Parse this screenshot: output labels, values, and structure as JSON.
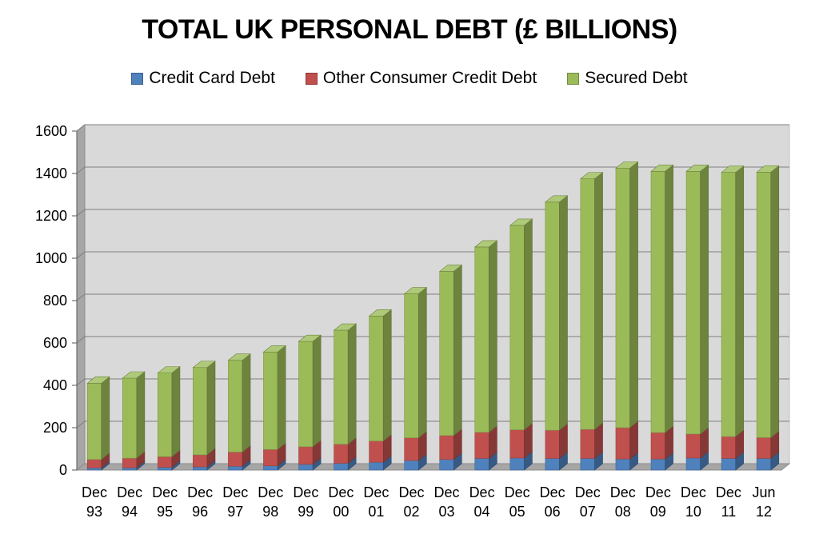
{
  "chart_data": {
    "type": "bar",
    "stacked": true,
    "title": "TOTAL UK PERSONAL DEBT (£ BILLIONS)",
    "xlabel": "",
    "ylabel": "",
    "ylim": [
      0,
      1600
    ],
    "yticks": [
      0,
      200,
      400,
      600,
      800,
      1000,
      1200,
      1400,
      1600
    ],
    "grid": true,
    "legend_position": "top",
    "categories": [
      [
        "Dec",
        "93"
      ],
      [
        "Dec",
        "94"
      ],
      [
        "Dec",
        "95"
      ],
      [
        "Dec",
        "96"
      ],
      [
        "Dec",
        "97"
      ],
      [
        "Dec",
        "98"
      ],
      [
        "Dec",
        "99"
      ],
      [
        "Dec",
        "00"
      ],
      [
        "Dec",
        "01"
      ],
      [
        "Dec",
        "02"
      ],
      [
        "Dec",
        "03"
      ],
      [
        "Dec",
        "04"
      ],
      [
        "Dec",
        "05"
      ],
      [
        "Dec",
        "06"
      ],
      [
        "Dec",
        "07"
      ],
      [
        "Dec",
        "08"
      ],
      [
        "Dec",
        "09"
      ],
      [
        "Dec",
        "10"
      ],
      [
        "Dec",
        "11"
      ],
      [
        "Jun",
        "12"
      ]
    ],
    "series": [
      {
        "name": "Credit Card Debt",
        "color": "#4f81bd",
        "values": [
          10,
          11,
          13,
          15,
          18,
          20,
          27,
          32,
          37,
          45,
          50,
          55,
          57,
          55,
          55,
          52,
          52,
          57,
          55,
          55
        ]
      },
      {
        "name": "Other Consumer Credit Debt",
        "color": "#c0504d",
        "values": [
          40,
          45,
          50,
          57,
          67,
          77,
          83,
          90,
          100,
          107,
          113,
          123,
          133,
          133,
          137,
          148,
          125,
          113,
          103,
          98
        ]
      },
      {
        "name": "Secured Debt",
        "color": "#9bbb59",
        "values": [
          360,
          378,
          395,
          412,
          433,
          460,
          497,
          538,
          590,
          680,
          775,
          875,
          965,
          1077,
          1183,
          1225,
          1233,
          1240,
          1247,
          1253
        ]
      }
    ]
  }
}
